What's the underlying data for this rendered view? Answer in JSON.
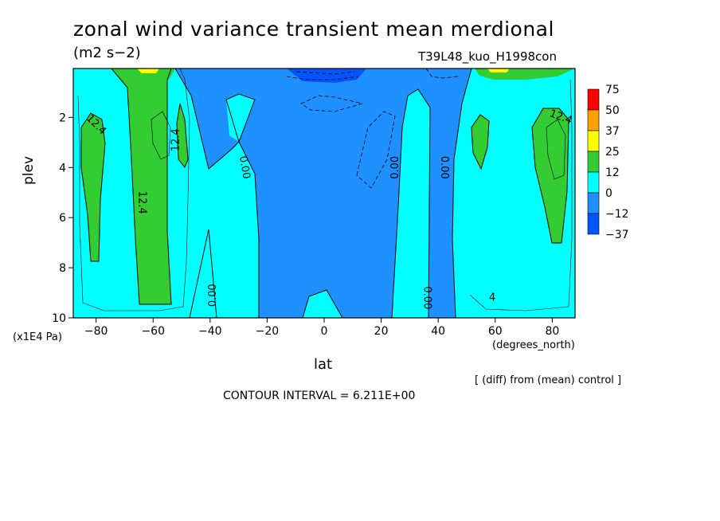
{
  "figure": {
    "title": "zonal wind variance transient mean merdional",
    "units": "(m2 s−2)",
    "run_id": "T39L48_kuo_H1998con",
    "diff_note": "[ (diff) from (mean) control ]",
    "contour_interval": "CONTOUR INTERVAL = 6.211E+00"
  },
  "chart_data": {
    "type": "heatmap",
    "title": "zonal wind variance transient mean merdional",
    "xlabel": "lat",
    "x_units": "(degrees_north)",
    "ylabel": "plev",
    "y_units": "(x1E4 Pa)",
    "xlim": [
      -88,
      88
    ],
    "ylim": [
      10,
      0.05
    ],
    "x_ticks": [
      -80,
      -60,
      -40,
      -20,
      0,
      20,
      40,
      60,
      80
    ],
    "y_ticks": [
      2,
      4,
      6,
      8,
      10
    ],
    "legend": {
      "position": "right",
      "levels": [
        "75",
        "50",
        "37",
        "25",
        "12",
        "0",
        "−12",
        "−37"
      ],
      "colors": [
        "#ff0000",
        "#ffa000",
        "#ffff00",
        "#33cc33",
        "#00ffff",
        "#1e90ff",
        "#0055ff"
      ]
    },
    "colors": {
      "negative": "#1e90ff",
      "near_zero": "#00ffff",
      "positive": "#33cc33",
      "strong_positive": "#ffff00",
      "strong_negative": "#0055ff",
      "contour": "#000000"
    },
    "contour_labels": [
      {
        "text": "12.4",
        "lat": -80,
        "plev": 2.3,
        "angle": 45
      },
      {
        "text": "12.4",
        "lat": -52,
        "plev": 2.9,
        "angle": -90
      },
      {
        "text": "12.4",
        "lat": -64,
        "plev": 5.4,
        "angle": 90
      },
      {
        "text": "12.4",
        "lat": 83,
        "plev": 2.0,
        "angle": 20
      },
      {
        "text": "0.00",
        "lat": -28,
        "plev": 4.0,
        "angle": 80
      },
      {
        "text": "0.00",
        "lat": 25,
        "plev": 4.0,
        "angle": -90
      },
      {
        "text": "0.00",
        "lat": 42,
        "plev": 4.0,
        "angle": 90
      },
      {
        "text": "0.00",
        "lat": -39,
        "plev": 9.1,
        "angle": -90
      },
      {
        "text": "0.00",
        "lat": 36,
        "plev": 9.2,
        "angle": 90
      },
      {
        "text": "4",
        "lat": 59,
        "plev": 9.2,
        "angle": 0
      }
    ]
  }
}
